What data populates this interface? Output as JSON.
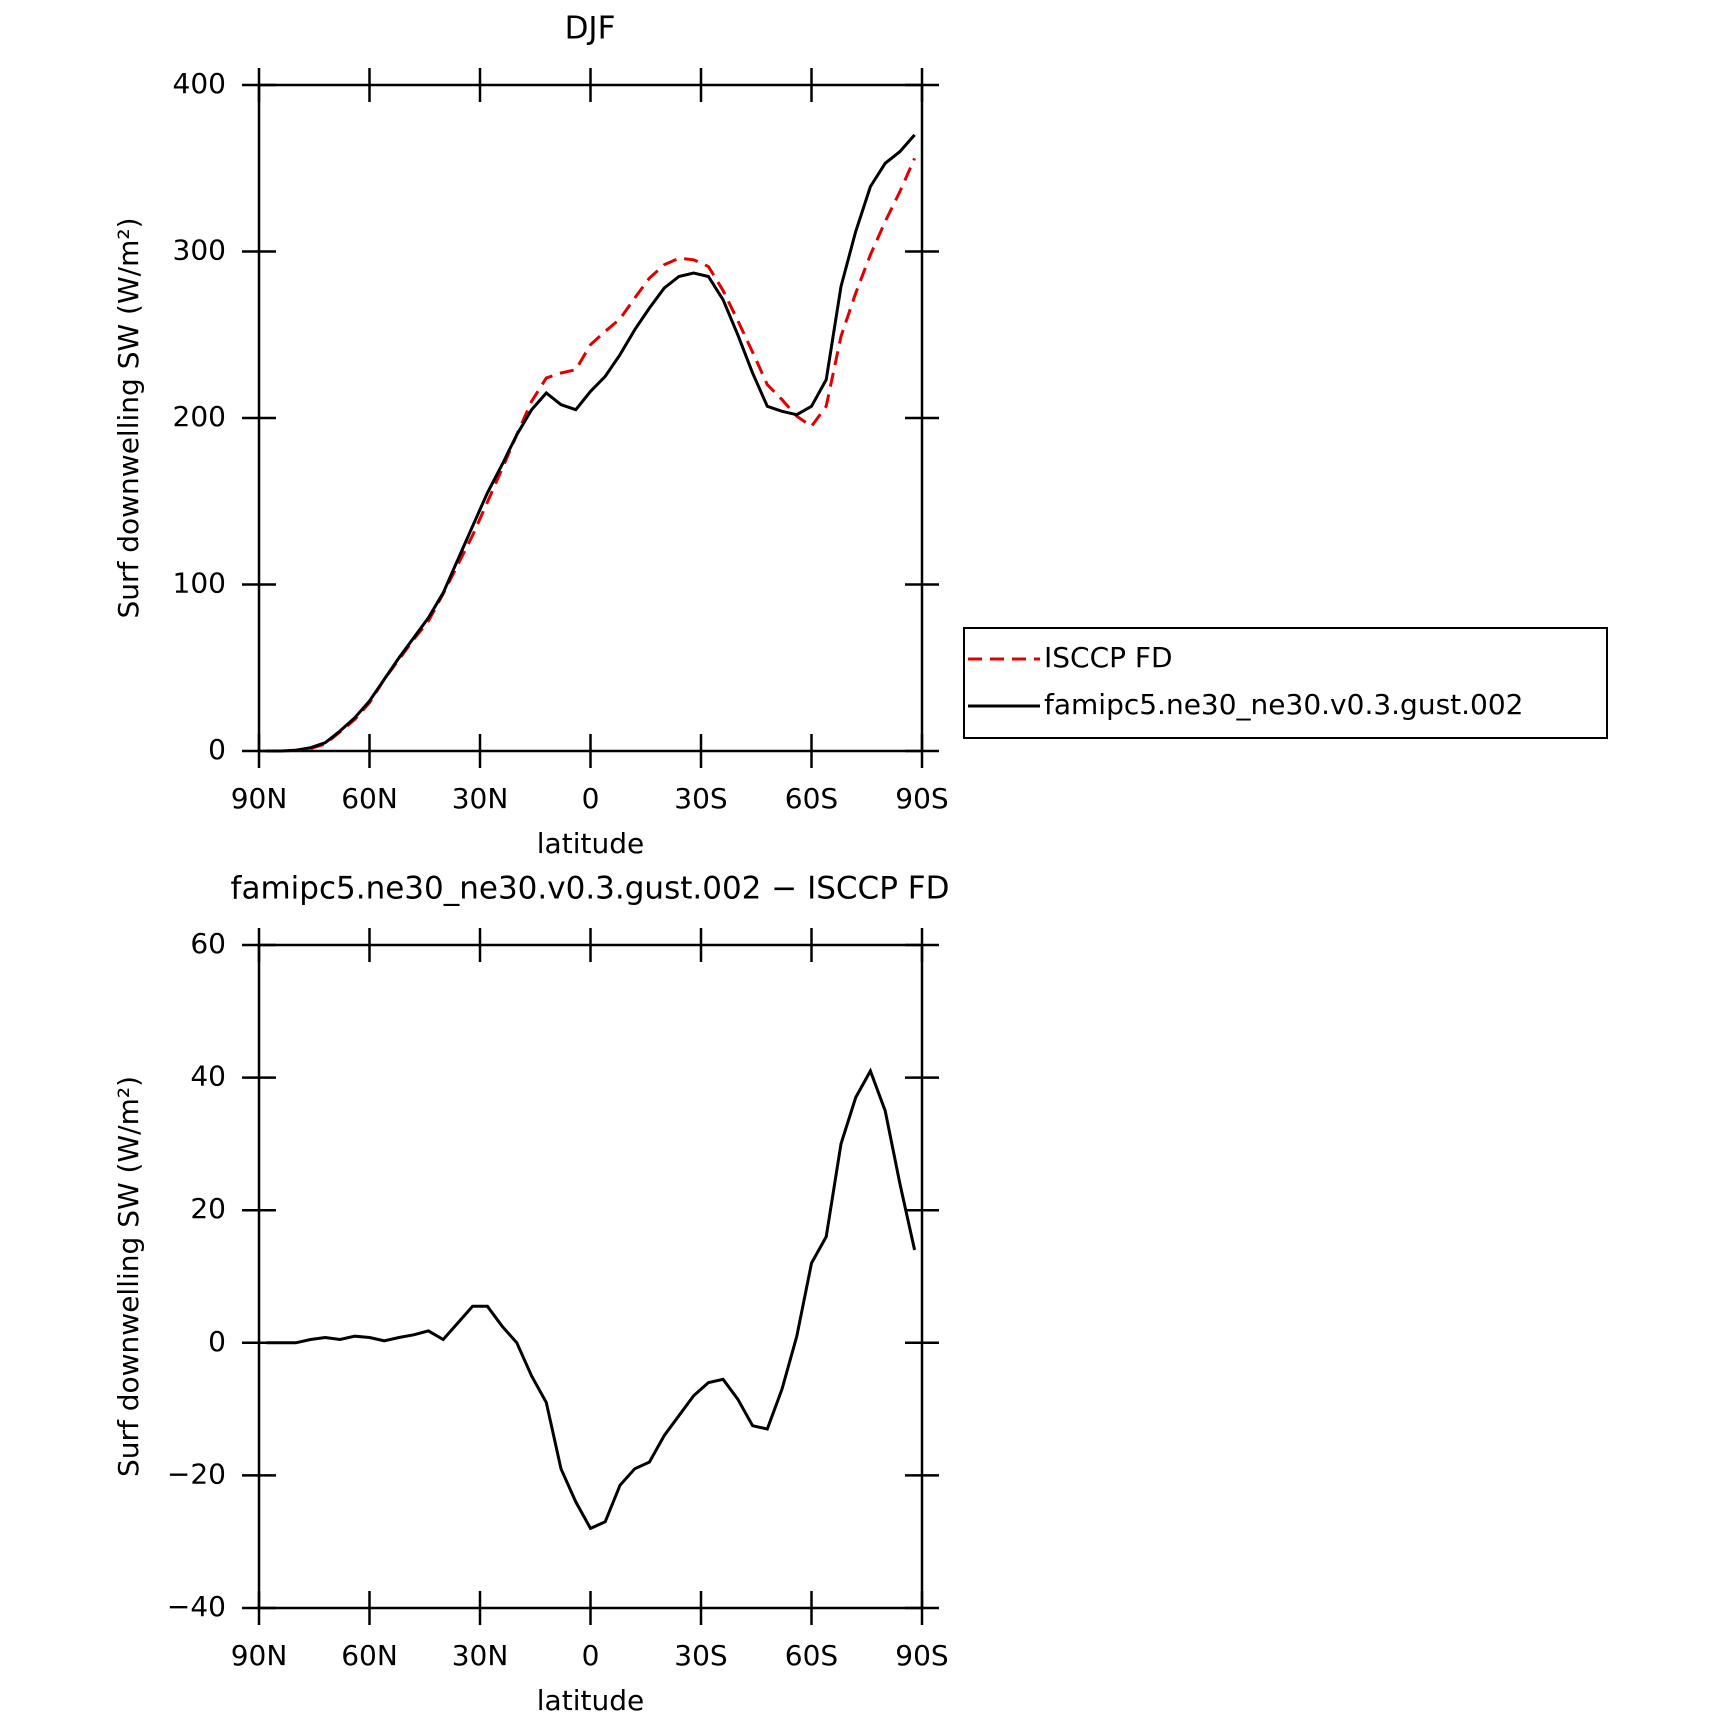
{
  "chart_data": [
    {
      "type": "line",
      "title": "DJF",
      "xlabel": "latitude",
      "ylabel": "Surf downwelling SW (W/m²)",
      "xlim": [
        90,
        -90
      ],
      "xticks": [
        {
          "value": 90,
          "label": "90N"
        },
        {
          "value": 60,
          "label": "60N"
        },
        {
          "value": 30,
          "label": "30N"
        },
        0,
        {
          "value": -30,
          "label": "30S"
        },
        {
          "value": -60,
          "label": "60S"
        },
        {
          "value": -90,
          "label": "90S"
        }
      ],
      "ylim": [
        0,
        400
      ],
      "yticks": [
        0,
        100,
        200,
        300,
        400
      ],
      "legend": "right",
      "x": [
        88,
        84,
        80,
        76,
        72,
        68,
        64,
        60,
        56,
        52,
        48,
        44,
        40,
        36,
        32,
        28,
        24,
        20,
        16,
        12,
        8,
        4,
        0,
        -4,
        -8,
        -12,
        -16,
        -20,
        -24,
        -28,
        -32,
        -36,
        -40,
        -44,
        -48,
        -52,
        -56,
        -60,
        -64,
        -68,
        -72,
        -76,
        -80,
        -84,
        -88
      ],
      "series": [
        {
          "name": "ISCCP FD",
          "color": "#e00000",
          "dash": true,
          "values": [
            0,
            0,
            0.5,
            1.5,
            4.2,
            11.5,
            19,
            29,
            43,
            55,
            67,
            78,
            94.5,
            112,
            129.5,
            149.5,
            169.5,
            190,
            210,
            224,
            227,
            229,
            244,
            252,
            259.5,
            272,
            284,
            292,
            296,
            295,
            291,
            276.5,
            258.5,
            239.5,
            220,
            211,
            201,
            195,
            207,
            249,
            275,
            298,
            318,
            336,
            356
          ]
        },
        {
          "name": "famipc5.ne30_ne30.v0.3.gust.002",
          "color": "#000000",
          "dash": false,
          "values": [
            0,
            0,
            0.5,
            2,
            5,
            12,
            20,
            30,
            43,
            56,
            68,
            80,
            95,
            115,
            135,
            155,
            172,
            190,
            205,
            215,
            208,
            205,
            216,
            225,
            238,
            253,
            266,
            278,
            285,
            287,
            285,
            271,
            250,
            227,
            207,
            204,
            202,
            207,
            223,
            279,
            312,
            339,
            353,
            360,
            370
          ]
        }
      ]
    },
    {
      "type": "line",
      "title": "famipc5.ne30_ne30.v0.3.gust.002 − ISCCP FD",
      "xlabel": "latitude",
      "ylabel": "Surf downwelling SW (W/m²)",
      "xlim": [
        90,
        -90
      ],
      "xticks": [
        {
          "value": 90,
          "label": "90N"
        },
        {
          "value": 60,
          "label": "60N"
        },
        {
          "value": 30,
          "label": "30N"
        },
        0,
        {
          "value": -30,
          "label": "30S"
        },
        {
          "value": -60,
          "label": "60S"
        },
        {
          "value": -90,
          "label": "90S"
        }
      ],
      "ylim": [
        -40,
        60
      ],
      "yticks": [
        {
          "value": -40,
          "label": "−40"
        },
        {
          "value": -20,
          "label": "−20"
        },
        0,
        20,
        40,
        60
      ],
      "x": [
        88,
        84,
        80,
        76,
        72,
        68,
        64,
        60,
        56,
        52,
        48,
        44,
        40,
        36,
        32,
        28,
        24,
        20,
        16,
        12,
        8,
        4,
        0,
        -4,
        -8,
        -12,
        -16,
        -20,
        -24,
        -28,
        -32,
        -36,
        -40,
        -44,
        -48,
        -52,
        -56,
        -60,
        -64,
        -68,
        -72,
        -76,
        -80,
        -84,
        -88
      ],
      "series": [
        {
          "color": "#000000",
          "dash": false,
          "values": [
            0,
            0,
            0,
            0.5,
            0.8,
            0.5,
            1,
            0.8,
            0.3,
            0.8,
            1.2,
            1.8,
            0.5,
            3,
            5.5,
            5.5,
            2.5,
            0,
            -5,
            -9,
            -19,
            -24,
            -28,
            -27,
            -21.5,
            -19,
            -18,
            -14,
            -11,
            -8,
            -6,
            -5.5,
            -8.5,
            -12.5,
            -13,
            -7,
            1,
            12,
            16,
            30,
            37,
            41,
            35,
            24,
            14
          ]
        }
      ]
    }
  ]
}
